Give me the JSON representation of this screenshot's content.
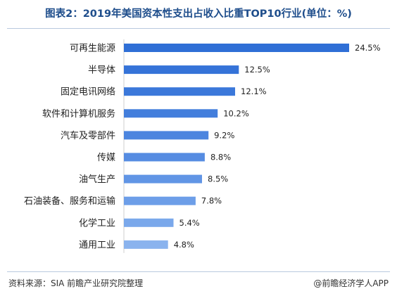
{
  "chart_data": {
    "type": "bar",
    "orientation": "horizontal",
    "title": "图表2：2019年美国资本性支出占收入比重TOP10行业(单位：%)",
    "categories": [
      "可再生能源",
      "半导体",
      "固定电讯网络",
      "软件和计算机服务",
      "汽车及零部件",
      "传媒",
      "油气生产",
      "石油装备、服务和运输",
      "化学工业",
      "通用工业"
    ],
    "values": [
      24.5,
      12.5,
      12.1,
      10.2,
      9.2,
      8.8,
      8.5,
      7.8,
      5.4,
      4.8
    ],
    "data_labels": [
      "24.5%",
      "12.5%",
      "12.1%",
      "10.2%",
      "9.2%",
      "8.8%",
      "8.5%",
      "7.8%",
      "5.4%",
      "4.8%"
    ],
    "xlim": [
      0,
      24.5
    ],
    "grid": false,
    "legend": "none",
    "colors": [
      "#2f6fd6",
      "#3573d8",
      "#3b78da",
      "#437edc",
      "#4c85df",
      "#568ce2",
      "#6195e5",
      "#6d9ee8",
      "#7aa8eb",
      "#8ab3ee"
    ]
  },
  "footer": {
    "source": "资料来源：SIA 前瞻产业研究院整理",
    "brand": "@前瞻经济学人APP"
  }
}
